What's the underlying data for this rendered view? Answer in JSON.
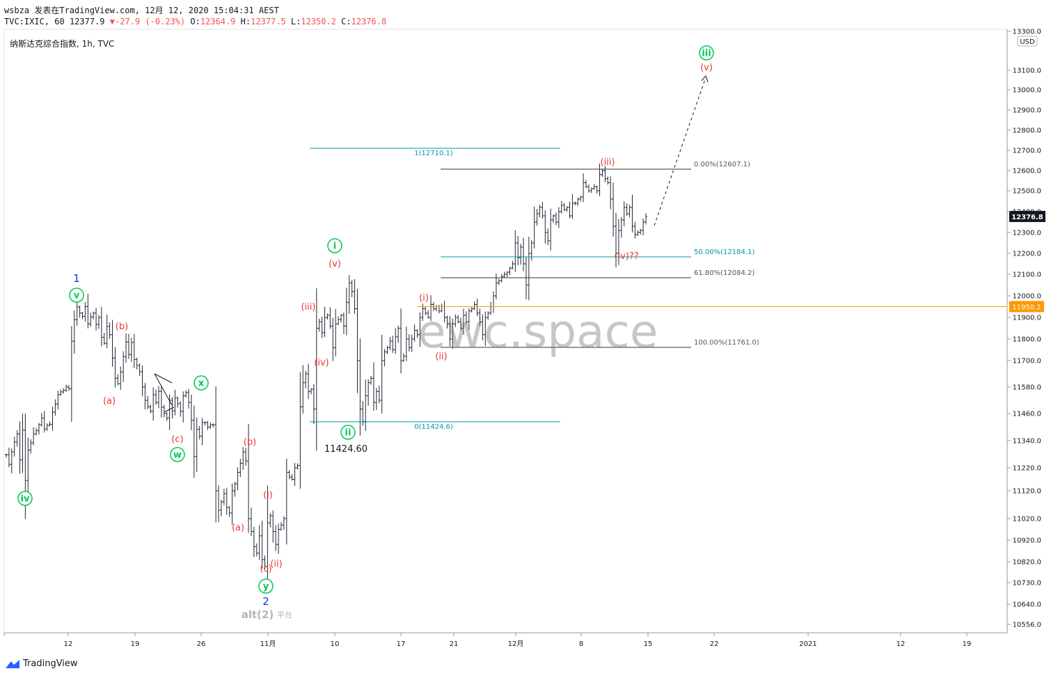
{
  "header": {
    "user": "wsbza",
    "published": "发表在TradingView.com, 12月 12, 2020 15:04:31 AEST",
    "symbol": "TVC:IXIC, 60",
    "last": "12377.9",
    "change": "-27.9 (-0.23%)",
    "o_label": "O:",
    "o_value": "12364.9",
    "h_label": "H:",
    "h_value": "12377.5",
    "l_label": "L:",
    "l_value": "12350.2",
    "c_label": "C:",
    "c_value": "12376.8"
  },
  "chart_title": "纳斯达克综合指数, 1h, TVC",
  "watermark": "ewc.space",
  "logo": "TradingView",
  "colors": {
    "price_line": "#ff9800",
    "current_price_bg": "#131722",
    "fib_teal": "#0097a7",
    "wave_red": "#e53935",
    "wave_green": "#00c853",
    "wave_blue": "#1a33cc",
    "bars": "#1f2430"
  },
  "chart_data": {
    "type": "ohlc-bar",
    "interval": "1h",
    "currency": "USD",
    "y_range": [
      10480,
      13330
    ],
    "y_ticks": [
      13300.0,
      13100.0,
      13000.0,
      12900.0,
      12800.0,
      12700.0,
      12600.0,
      12500.0,
      12400.0,
      12300.0,
      12200.0,
      12100.0,
      12000.0,
      11900.0,
      11800.0,
      11700.0,
      11580.0,
      11460.0,
      11340.0,
      11220.0,
      11120.0,
      11020.0,
      10920.0,
      10820.0,
      10730.0,
      10640.0,
      10556.0
    ],
    "x_ticks": [
      "12",
      "19",
      "26",
      "11月",
      "10",
      "17",
      "21",
      "12月",
      "8",
      "15",
      "22",
      "2021",
      "12",
      "19"
    ],
    "current_price": "12376.8",
    "level_price": "11950.2",
    "fib_extension": {
      "top": "1(12710.1)",
      "bottom": "0(11424.6)"
    },
    "fib_retracement": [
      {
        "label": "0.00%(12607.1)",
        "value": 12607.1
      },
      {
        "label": "50.00%(12184.1)",
        "value": 12184.1
      },
      {
        "label": "61.80%(12084.2)",
        "value": 12084.2
      },
      {
        "label": "100.00%(11761.0)",
        "value": 11761.0
      }
    ],
    "annotations": {
      "low_label": "11424.60",
      "alt_label": "alt(2)",
      "alt_suffix": "平台",
      "wave_labels": [
        "1",
        "2",
        "iv",
        "v",
        "w",
        "x",
        "y",
        "i",
        "ii",
        "iii",
        "(a)",
        "(b)",
        "(c)",
        "(i)",
        "(ii)",
        "(iii)",
        "(iv)",
        "(v)",
        "(iv)??"
      ]
    },
    "series": [
      {
        "values": [
          11278,
          11235,
          11290,
          11334,
          11370,
          11255,
          11386,
          11165,
          11298,
          11330,
          11370,
          11384,
          11410,
          11440,
          11392,
          11408,
          11412,
          11466,
          11503,
          11546,
          11558,
          11565,
          11580,
          11572,
          11790,
          11890,
          11948,
          11920,
          11905,
          11950,
          11870,
          11902,
          11920,
          11868,
          11900,
          11808,
          11780,
          11858,
          11820,
          11712,
          11620,
          11595,
          11648,
          11718,
          11786,
          11728,
          11784,
          11705,
          11678,
          11650,
          11580,
          11520,
          11490,
          11470,
          11545,
          11510,
          11560,
          11488,
          11460,
          11440,
          11520,
          11472,
          11530,
          11505,
          11470,
          11540,
          11555,
          11510,
          11430,
          11270,
          11390,
          11360,
          11420,
          11420,
          11400,
          11410,
          11410,
          11120,
          11050,
          11080,
          11110,
          11060,
          11040,
          11120,
          11150,
          11200,
          11240,
          11290,
          11250,
          11020,
          10960,
          10890,
          10860,
          10940,
          10830,
          10800,
          11000,
          11030,
          10960,
          10900,
          10970,
          10990,
          11020,
          11200,
          11180,
          11170,
          11220,
          11230,
          11490,
          11600,
          11640,
          11560,
          11570,
          11480,
          11850,
          11880,
          11830,
          11900,
          11910,
          11860,
          11760,
          11870,
          11890,
          11910,
          11860,
          11970,
          12060,
          12020,
          11940,
          11700,
          11480,
          11424.6,
          11540,
          11600,
          11620,
          11510,
          11560,
          11520,
          11700,
          11740,
          11760,
          11790,
          11750,
          11810,
          11850,
          11700,
          11720,
          11800,
          11760,
          11800,
          11840,
          11820,
          11900,
          11940,
          11920,
          11900,
          11960,
          11940,
          11950,
          11930,
          11950,
          11900,
          11870,
          11800,
          11870,
          11900,
          11880,
          11850,
          11910,
          11880,
          11930,
          11940,
          11960,
          11920,
          11880,
          11820,
          11900,
          11920,
          11950,
          12000,
          12060,
          12070,
          12090,
          12100,
          12110,
          12130,
          12150,
          12250,
          12180,
          12230,
          12150,
          12050,
          12200,
          12250,
          12350,
          12390,
          12420,
          12380,
          12300,
          12260,
          12360,
          12380,
          12350,
          12400,
          12430,
          12410,
          12420,
          12380,
          12440,
          12440,
          12460,
          12470,
          12540,
          12520,
          12500,
          12510,
          12520,
          12500,
          12580,
          12600,
          12560,
          12540,
          12460,
          12330,
          12200,
          12310,
          12360,
          12420,
          12390,
          12420,
          12330,
          12290,
          12300,
          12310,
          12350,
          12377
        ]
      }
    ]
  }
}
